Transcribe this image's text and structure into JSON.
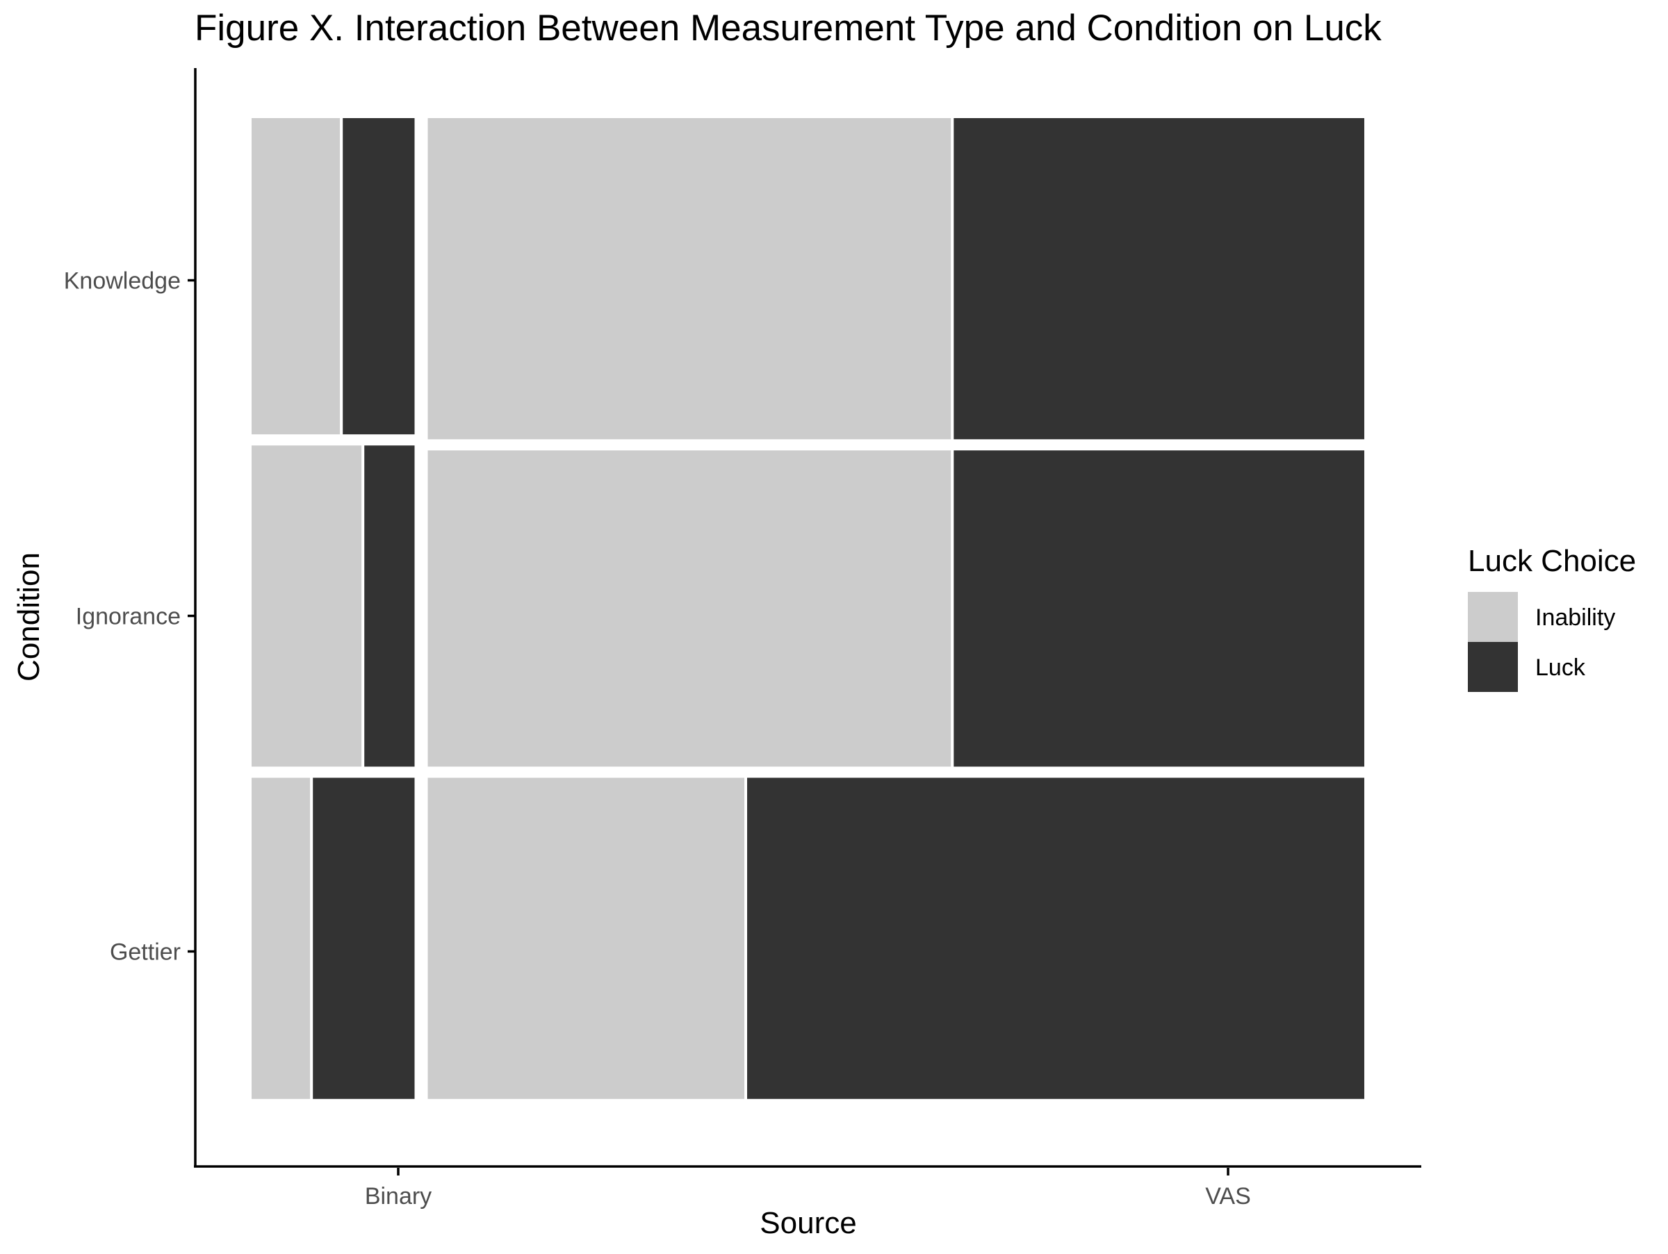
{
  "chart_data": {
    "type": "mosaic",
    "title": "Figure X. Interaction Between Measurement Type and Condition on Luck",
    "xlabel": "Source",
    "ylabel": "Condition",
    "x_categories": [
      "Binary",
      "VAS"
    ],
    "y_categories": [
      "Knowledge",
      "Ignorance",
      "Gettier"
    ],
    "source_widths": {
      "Binary": 0.15,
      "VAS": 0.85
    },
    "condition_heights": {
      "Binary": {
        "Knowledge": 0.325,
        "Ignorance": 0.33,
        "Gettier": 0.33
      },
      "VAS": {
        "Knowledge": 0.33,
        "Ignorance": 0.325,
        "Gettier": 0.33
      }
    },
    "luck_proportions": {
      "Binary": {
        "Knowledge": 0.45,
        "Ignorance": 0.32,
        "Gettier": 0.63
      },
      "VAS": {
        "Knowledge": 0.44,
        "Ignorance": 0.44,
        "Gettier": 0.66
      }
    },
    "legend": {
      "title": "Luck Choice",
      "position": "right",
      "items": [
        {
          "label": "Inability",
          "color": "#CCCCCC"
        },
        {
          "label": "Luck",
          "color": "#333333"
        }
      ]
    },
    "grid": false
  }
}
